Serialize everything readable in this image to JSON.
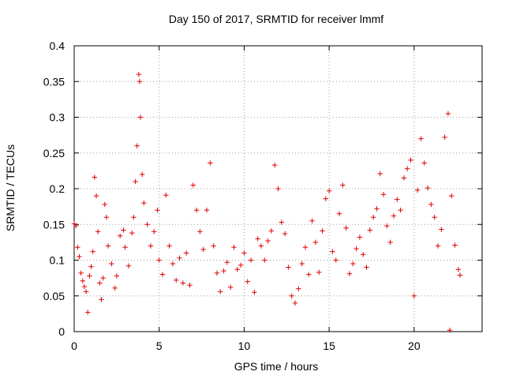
{
  "chart_data": {
    "type": "scatter",
    "title": "Day 150 of 2017, SRMTID for receiver lmmf",
    "xlabel": "GPS time / hours",
    "ylabel": "SRMTID / TECUs",
    "xlim": [
      0,
      24
    ],
    "ylim": [
      0,
      0.4
    ],
    "x_ticks": [
      0,
      5,
      10,
      15,
      20
    ],
    "y_ticks": [
      0,
      0.05,
      0.1,
      0.15,
      0.2,
      0.25,
      0.3,
      0.35,
      0.4
    ],
    "x_tick_labels": [
      "0",
      "5",
      "10",
      "15",
      "20"
    ],
    "y_tick_labels": [
      "0",
      "0.05",
      "0.1",
      "0.15",
      "0.2",
      "0.25",
      "0.3",
      "0.35",
      "0.4"
    ],
    "grid": true,
    "marker": "+",
    "color": "#e00000",
    "series": [
      {
        "name": "lmmf",
        "points": [
          [
            0.0,
            0.151
          ],
          [
            0.1,
            0.148
          ],
          [
            0.2,
            0.118
          ],
          [
            0.3,
            0.105
          ],
          [
            0.4,
            0.082
          ],
          [
            0.5,
            0.071
          ],
          [
            0.6,
            0.063
          ],
          [
            0.7,
            0.056
          ],
          [
            0.8,
            0.027
          ],
          [
            0.9,
            0.078
          ],
          [
            1.0,
            0.091
          ],
          [
            1.1,
            0.112
          ],
          [
            1.2,
            0.216
          ],
          [
            1.3,
            0.19
          ],
          [
            1.4,
            0.14
          ],
          [
            1.5,
            0.068
          ],
          [
            1.6,
            0.045
          ],
          [
            1.7,
            0.075
          ],
          [
            1.8,
            0.178
          ],
          [
            1.9,
            0.16
          ],
          [
            2.0,
            0.12
          ],
          [
            2.2,
            0.095
          ],
          [
            2.4,
            0.061
          ],
          [
            2.5,
            0.078
          ],
          [
            2.7,
            0.134
          ],
          [
            2.9,
            0.142
          ],
          [
            3.0,
            0.118
          ],
          [
            3.2,
            0.092
          ],
          [
            3.4,
            0.138
          ],
          [
            3.5,
            0.16
          ],
          [
            3.6,
            0.21
          ],
          [
            3.7,
            0.26
          ],
          [
            3.8,
            0.36
          ],
          [
            3.85,
            0.35
          ],
          [
            3.9,
            0.3
          ],
          [
            4.0,
            0.22
          ],
          [
            4.1,
            0.18
          ],
          [
            4.3,
            0.15
          ],
          [
            4.5,
            0.12
          ],
          [
            4.7,
            0.14
          ],
          [
            4.9,
            0.17
          ],
          [
            5.0,
            0.1
          ],
          [
            5.2,
            0.08
          ],
          [
            5.4,
            0.191
          ],
          [
            5.6,
            0.12
          ],
          [
            5.8,
            0.095
          ],
          [
            6.0,
            0.072
          ],
          [
            6.2,
            0.103
          ],
          [
            6.4,
            0.068
          ],
          [
            6.6,
            0.11
          ],
          [
            6.8,
            0.065
          ],
          [
            7.0,
            0.205
          ],
          [
            7.2,
            0.17
          ],
          [
            7.4,
            0.14
          ],
          [
            7.6,
            0.115
          ],
          [
            7.8,
            0.17
          ],
          [
            8.0,
            0.236
          ],
          [
            8.2,
            0.12
          ],
          [
            8.4,
            0.082
          ],
          [
            8.6,
            0.056
          ],
          [
            8.8,
            0.085
          ],
          [
            9.0,
            0.097
          ],
          [
            9.2,
            0.062
          ],
          [
            9.4,
            0.118
          ],
          [
            9.6,
            0.087
          ],
          [
            9.8,
            0.093
          ],
          [
            10.0,
            0.11
          ],
          [
            10.2,
            0.07
          ],
          [
            10.4,
            0.1
          ],
          [
            10.6,
            0.055
          ],
          [
            10.8,
            0.13
          ],
          [
            11.0,
            0.12
          ],
          [
            11.2,
            0.1
          ],
          [
            11.4,
            0.127
          ],
          [
            11.6,
            0.141
          ],
          [
            11.8,
            0.233
          ],
          [
            12.0,
            0.2
          ],
          [
            12.2,
            0.153
          ],
          [
            12.4,
            0.137
          ],
          [
            12.6,
            0.09
          ],
          [
            12.8,
            0.05
          ],
          [
            13.0,
            0.04
          ],
          [
            13.2,
            0.06
          ],
          [
            13.4,
            0.095
          ],
          [
            13.6,
            0.118
          ],
          [
            13.8,
            0.08
          ],
          [
            14.0,
            0.155
          ],
          [
            14.2,
            0.125
          ],
          [
            14.4,
            0.083
          ],
          [
            14.6,
            0.141
          ],
          [
            14.8,
            0.186
          ],
          [
            15.0,
            0.197
          ],
          [
            15.2,
            0.112
          ],
          [
            15.4,
            0.1
          ],
          [
            15.6,
            0.165
          ],
          [
            15.8,
            0.205
          ],
          [
            16.0,
            0.145
          ],
          [
            16.2,
            0.081
          ],
          [
            16.4,
            0.095
          ],
          [
            16.6,
            0.116
          ],
          [
            16.8,
            0.132
          ],
          [
            17.0,
            0.108
          ],
          [
            17.2,
            0.09
          ],
          [
            17.4,
            0.142
          ],
          [
            17.6,
            0.16
          ],
          [
            17.8,
            0.172
          ],
          [
            18.0,
            0.221
          ],
          [
            18.2,
            0.192
          ],
          [
            18.4,
            0.148
          ],
          [
            18.6,
            0.125
          ],
          [
            18.8,
            0.162
          ],
          [
            19.0,
            0.185
          ],
          [
            19.2,
            0.17
          ],
          [
            19.4,
            0.215
          ],
          [
            19.6,
            0.228
          ],
          [
            19.8,
            0.24
          ],
          [
            20.0,
            0.05
          ],
          [
            20.2,
            0.198
          ],
          [
            20.4,
            0.27
          ],
          [
            20.6,
            0.236
          ],
          [
            20.8,
            0.201
          ],
          [
            21.0,
            0.178
          ],
          [
            21.2,
            0.16
          ],
          [
            21.4,
            0.12
          ],
          [
            21.6,
            0.143
          ],
          [
            21.8,
            0.272
          ],
          [
            22.0,
            0.305
          ],
          [
            22.1,
            0.002
          ],
          [
            22.2,
            0.19
          ],
          [
            22.4,
            0.121
          ],
          [
            22.6,
            0.087
          ],
          [
            22.7,
            0.079
          ]
        ]
      }
    ]
  }
}
